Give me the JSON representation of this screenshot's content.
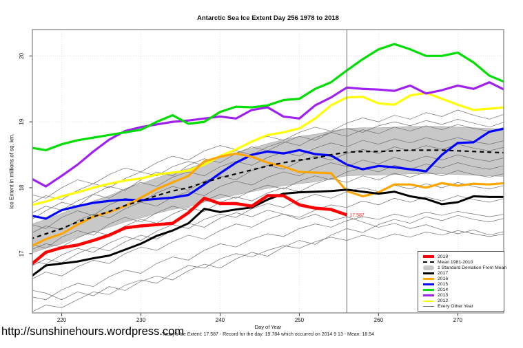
{
  "page": {
    "url_text": "http://sunshinehours.wordpress.com",
    "footer_line": "Today's Ice Extent: 17.587  - Record for the day: 19.784 which occurred on 2014 9 13  - Mean: 18.54"
  },
  "chart_data": {
    "type": "line",
    "title": "Antarctic Sea Ice Extent Day 256 1978 to 2018",
    "xlabel": "Day of Year",
    "ylabel": "Ice Extent in millions of sq. km.",
    "xlim": [
      216.3,
      275.8
    ],
    "ylim": [
      16.1,
      20.4
    ],
    "x_ticks": [
      220,
      230,
      240,
      250,
      260,
      270
    ],
    "y_ticks": [
      17,
      18,
      19,
      20
    ],
    "grid": "dotted",
    "vline_x": 256,
    "annotation": {
      "text": "17.587",
      "x": 256,
      "y": 17.587,
      "color": "#FF2020"
    },
    "x": [
      216,
      218,
      220,
      222,
      224,
      226,
      228,
      230,
      232,
      234,
      236,
      238,
      240,
      242,
      244,
      246,
      248,
      250,
      252,
      254,
      256,
      258,
      260,
      262,
      264,
      266,
      268,
      270,
      272,
      274,
      276
    ],
    "series": [
      {
        "name": "2012",
        "color": "#FFFF00",
        "width": 3.2,
        "values": [
          17.73,
          17.79,
          17.87,
          17.93,
          18.0,
          18.06,
          18.11,
          18.14,
          18.2,
          18.23,
          18.26,
          18.35,
          18.48,
          18.58,
          18.7,
          18.8,
          18.84,
          18.9,
          19.05,
          19.25,
          19.37,
          19.38,
          19.28,
          19.26,
          19.4,
          19.44,
          19.35,
          19.26,
          19.18,
          19.2,
          19.22
        ]
      },
      {
        "name": "2013",
        "color": "#A020F0",
        "width": 3.2,
        "values": [
          18.15,
          18.02,
          18.18,
          18.35,
          18.55,
          18.73,
          18.86,
          18.92,
          18.96,
          19.0,
          19.02,
          19.05,
          19.08,
          19.05,
          19.18,
          19.22,
          19.08,
          19.05,
          19.25,
          19.37,
          19.52,
          19.5,
          19.49,
          19.47,
          19.55,
          19.43,
          19.48,
          19.55,
          19.5,
          19.6,
          19.48
        ]
      },
      {
        "name": "2014",
        "color": "#00DD00",
        "width": 3.2,
        "values": [
          18.61,
          18.57,
          18.66,
          18.72,
          18.76,
          18.8,
          18.84,
          18.88,
          19.0,
          19.1,
          18.97,
          19.0,
          19.15,
          19.23,
          19.22,
          19.25,
          19.33,
          19.35,
          19.5,
          19.6,
          19.78,
          19.95,
          20.1,
          20.18,
          20.1,
          20.0,
          20.0,
          20.05,
          19.9,
          19.7,
          19.6
        ]
      },
      {
        "name": "2015",
        "color": "#0000FF",
        "width": 3.2,
        "values": [
          17.58,
          17.53,
          17.66,
          17.72,
          17.77,
          17.8,
          17.82,
          17.81,
          17.83,
          17.85,
          17.89,
          18.05,
          18.22,
          18.38,
          18.5,
          18.55,
          18.52,
          18.57,
          18.51,
          18.49,
          18.35,
          18.28,
          18.33,
          18.31,
          18.28,
          18.25,
          18.5,
          18.68,
          18.69,
          18.85,
          18.9
        ]
      },
      {
        "name": "2016",
        "color": "#FFA500",
        "width": 3.2,
        "values": [
          17.1,
          17.22,
          17.3,
          17.44,
          17.56,
          17.63,
          17.72,
          17.85,
          17.98,
          18.08,
          18.18,
          18.4,
          18.47,
          18.52,
          18.47,
          18.38,
          18.32,
          18.24,
          18.23,
          18.22,
          17.95,
          17.87,
          17.93,
          18.05,
          18.05,
          18.0,
          18.07,
          18.03,
          18.06,
          18.05,
          18.07
        ]
      },
      {
        "name": "2017",
        "color": "#000000",
        "width": 3,
        "values": [
          16.64,
          16.82,
          16.85,
          16.88,
          16.93,
          16.97,
          17.06,
          17.15,
          17.27,
          17.35,
          17.46,
          17.68,
          17.63,
          17.67,
          17.7,
          17.82,
          17.91,
          17.93,
          17.94,
          17.95,
          17.97,
          17.94,
          17.91,
          17.94,
          17.87,
          17.83,
          17.75,
          17.78,
          17.87,
          17.86,
          17.86
        ]
      },
      {
        "name": "Mean 1981-2010",
        "color": "#000000",
        "width": 2.2,
        "dash": "6,5",
        "values": [
          17.22,
          17.3,
          17.38,
          17.48,
          17.56,
          17.64,
          17.73,
          17.8,
          17.88,
          17.95,
          18.0,
          18.08,
          18.15,
          18.21,
          18.27,
          18.33,
          18.38,
          18.42,
          18.45,
          18.5,
          18.54,
          18.55,
          18.55,
          18.56,
          18.57,
          18.57,
          18.57,
          18.56,
          18.55,
          18.54,
          18.53
        ]
      },
      {
        "name": "2018",
        "color": "#FF0000",
        "width": 4.5,
        "values": [
          16.82,
          17.02,
          17.09,
          17.13,
          17.2,
          17.28,
          17.39,
          17.42,
          17.44,
          17.46,
          17.62,
          17.84,
          17.76,
          17.76,
          17.72,
          17.88,
          17.88,
          17.74,
          17.69,
          17.67,
          17.587
        ]
      }
    ],
    "band": {
      "name": "1 Standard Deviation From Mean",
      "color": "#C8C8C8",
      "upper": [
        17.44,
        17.52,
        17.61,
        17.71,
        17.8,
        17.88,
        17.98,
        18.06,
        18.15,
        18.23,
        18.29,
        18.38,
        18.46,
        18.53,
        18.6,
        18.67,
        18.73,
        18.78,
        18.81,
        18.86,
        18.9,
        18.91,
        18.91,
        18.92,
        18.93,
        18.93,
        18.93,
        18.92,
        18.91,
        18.9,
        18.89
      ],
      "lower": [
        17.0,
        17.08,
        17.15,
        17.25,
        17.32,
        17.4,
        17.48,
        17.54,
        17.61,
        17.67,
        17.71,
        17.78,
        17.84,
        17.89,
        17.94,
        17.99,
        18.03,
        18.06,
        18.09,
        18.14,
        18.18,
        18.19,
        18.19,
        18.2,
        18.21,
        18.21,
        18.21,
        18.2,
        18.19,
        18.18,
        18.17
      ]
    },
    "background_series": {
      "name": "Every Other Year",
      "color": "#6E6E6E",
      "lines": [
        [
          16.1,
          16.22,
          16.18,
          16.3,
          16.42,
          16.38,
          16.52,
          16.6,
          16.55,
          16.7,
          16.82,
          16.78,
          16.92,
          17.0,
          16.95,
          17.05,
          17.12,
          17.08,
          17.18,
          17.25,
          17.2,
          17.28,
          17.22,
          17.3,
          17.25,
          17.33,
          17.28,
          17.35,
          17.3,
          17.26,
          17.3
        ],
        [
          16.35,
          16.3,
          16.45,
          16.55,
          16.5,
          16.65,
          16.75,
          16.7,
          16.85,
          16.95,
          16.9,
          17.05,
          17.15,
          17.1,
          17.22,
          17.3,
          17.26,
          17.38,
          17.45,
          17.4,
          17.5,
          17.56,
          17.52,
          17.6,
          17.55,
          17.63,
          17.58,
          17.64,
          17.6,
          17.56,
          17.6
        ],
        [
          16.6,
          16.72,
          16.66,
          16.8,
          16.9,
          16.85,
          17.0,
          17.1,
          17.05,
          17.18,
          17.28,
          17.22,
          17.35,
          17.45,
          17.4,
          17.52,
          17.6,
          17.55,
          17.66,
          17.74,
          17.7,
          17.8,
          17.74,
          17.84,
          17.78,
          17.86,
          17.8,
          17.88,
          17.82,
          17.78,
          17.84
        ],
        [
          16.9,
          16.84,
          16.98,
          17.08,
          17.02,
          17.16,
          17.26,
          17.2,
          17.34,
          17.44,
          17.38,
          17.52,
          17.6,
          17.55,
          17.68,
          17.76,
          17.7,
          17.82,
          17.9,
          17.84,
          17.94,
          18.0,
          17.94,
          18.04,
          17.98,
          18.06,
          18.0,
          18.08,
          18.02,
          17.98,
          18.04
        ],
        [
          17.05,
          17.15,
          17.1,
          17.24,
          17.34,
          17.28,
          17.42,
          17.52,
          17.46,
          17.6,
          17.7,
          17.64,
          17.78,
          17.86,
          17.8,
          17.92,
          18.0,
          17.94,
          18.06,
          18.14,
          18.08,
          18.18,
          18.12,
          18.22,
          18.16,
          18.24,
          18.18,
          18.26,
          18.2,
          18.16,
          18.22
        ],
        [
          17.15,
          17.08,
          17.25,
          17.35,
          17.28,
          17.45,
          17.55,
          17.48,
          17.62,
          17.72,
          17.66,
          17.8,
          17.9,
          17.84,
          17.96,
          18.04,
          17.98,
          18.1,
          18.18,
          18.12,
          18.24,
          18.3,
          18.24,
          18.34,
          18.28,
          18.36,
          18.3,
          18.38,
          18.32,
          18.28,
          18.34
        ],
        [
          17.3,
          17.42,
          17.36,
          17.5,
          17.6,
          17.54,
          17.68,
          17.78,
          17.72,
          17.86,
          17.94,
          17.88,
          18.02,
          18.1,
          18.04,
          18.16,
          18.24,
          18.18,
          18.3,
          18.38,
          18.32,
          18.42,
          18.36,
          18.46,
          18.4,
          18.48,
          18.42,
          18.5,
          18.44,
          18.4,
          18.46
        ],
        [
          17.45,
          17.38,
          17.55,
          17.65,
          17.58,
          17.74,
          17.84,
          17.78,
          17.92,
          18.02,
          17.96,
          18.1,
          18.18,
          18.12,
          18.26,
          18.34,
          18.28,
          18.4,
          18.48,
          18.42,
          18.52,
          18.58,
          18.52,
          18.62,
          18.56,
          18.64,
          18.58,
          18.66,
          18.6,
          18.56,
          18.62
        ],
        [
          17.6,
          17.72,
          17.66,
          17.8,
          17.9,
          17.84,
          17.98,
          18.08,
          18.02,
          18.16,
          18.24,
          18.18,
          18.32,
          18.4,
          18.34,
          18.46,
          18.54,
          18.48,
          18.6,
          18.68,
          18.62,
          18.72,
          18.66,
          18.74,
          18.68,
          18.76,
          18.7,
          18.76,
          18.7,
          18.66,
          18.72
        ],
        [
          17.75,
          17.88,
          17.82,
          17.96,
          18.06,
          18.0,
          18.14,
          18.24,
          18.18,
          18.32,
          18.4,
          18.34,
          18.48,
          18.56,
          18.5,
          18.62,
          18.7,
          18.64,
          18.76,
          18.84,
          18.78,
          18.88,
          18.82,
          18.92,
          18.86,
          18.94,
          18.88,
          18.96,
          18.9,
          18.86,
          18.92
        ],
        [
          17.9,
          17.84,
          18.0,
          18.12,
          18.06,
          18.2,
          18.3,
          18.24,
          18.38,
          18.48,
          18.42,
          18.56,
          18.64,
          18.58,
          18.7,
          18.78,
          18.72,
          18.84,
          18.92,
          18.86,
          18.98,
          19.06,
          19.0,
          19.1,
          19.04,
          19.14,
          19.08,
          19.18,
          19.1,
          19.04,
          19.12
        ],
        [
          16.8,
          16.92,
          16.86,
          17.0,
          17.1,
          17.04,
          17.18,
          17.28,
          17.22,
          17.36,
          17.46,
          17.4,
          17.54,
          17.62,
          17.56,
          17.66,
          17.6,
          17.52,
          17.6,
          17.5,
          17.56,
          17.48,
          17.4,
          17.46,
          17.38,
          17.44,
          17.36,
          17.3,
          17.36,
          17.28,
          17.34
        ],
        [
          17.5,
          17.65,
          17.78,
          17.72,
          17.9,
          18.02,
          17.96,
          18.12,
          18.24,
          18.18,
          18.34,
          18.44,
          18.38,
          18.52,
          18.62,
          18.56,
          18.68,
          18.78,
          18.72,
          18.84,
          18.9,
          18.84,
          18.94,
          19.0,
          18.94,
          19.02,
          18.96,
          19.04,
          18.98,
          18.92,
          19.0
        ],
        [
          16.45,
          16.4,
          16.3,
          16.42,
          16.36,
          16.5,
          16.44,
          16.58,
          16.66,
          16.6,
          16.74,
          16.84,
          16.78,
          16.92,
          17.02,
          16.96,
          17.1,
          17.2,
          17.14,
          17.28,
          17.38,
          17.32,
          17.44,
          17.52,
          17.46,
          17.56,
          17.5,
          17.58,
          17.52,
          17.48,
          17.54
        ]
      ]
    },
    "legend": {
      "position": "bottom-right",
      "entries": [
        {
          "label": "2018",
          "swatch": "line",
          "color": "#FF0000",
          "thickness": 3.5
        },
        {
          "label": "Mean 1981-2010",
          "swatch": "dashed-line",
          "color": "#000000",
          "thickness": 2.2
        },
        {
          "label": "1 Standard Deviation From Mean",
          "swatch": "band",
          "color": "#C8C8C8"
        },
        {
          "label": "2017",
          "swatch": "line",
          "color": "#000000",
          "thickness": 2.6
        },
        {
          "label": "2016",
          "swatch": "line",
          "color": "#FFA500",
          "thickness": 2.6
        },
        {
          "label": "2015",
          "swatch": "line",
          "color": "#0000FF",
          "thickness": 2.6
        },
        {
          "label": "2014",
          "swatch": "line",
          "color": "#00DD00",
          "thickness": 2.6
        },
        {
          "label": "2013",
          "swatch": "line",
          "color": "#A020F0",
          "thickness": 2.6
        },
        {
          "label": "2012",
          "swatch": "line",
          "color": "#FFFF00",
          "thickness": 2.6
        },
        {
          "label": "Every Other Year",
          "swatch": "thin-line",
          "color": "#6E6E6E",
          "thickness": 1
        }
      ]
    }
  }
}
